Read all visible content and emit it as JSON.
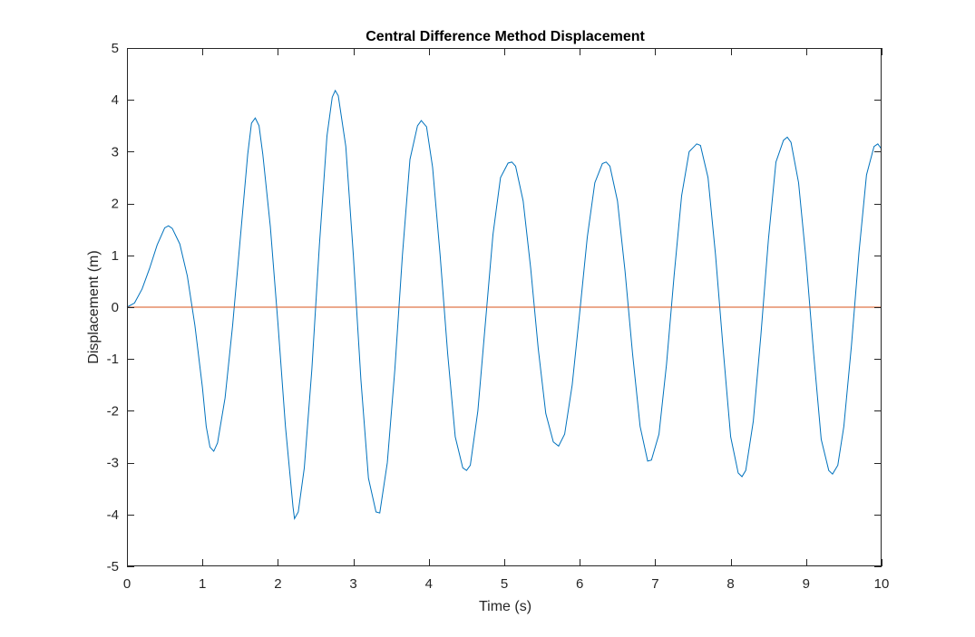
{
  "chart_data": {
    "type": "line",
    "title": "Central Difference Method Displacement",
    "xlabel": "Time (s)",
    "ylabel": "Displacement (m)",
    "xlim": [
      0,
      10
    ],
    "ylim": [
      -5,
      5
    ],
    "xticks": [
      0,
      1,
      2,
      3,
      4,
      5,
      6,
      7,
      8,
      9,
      10
    ],
    "yticks": [
      5,
      4,
      3,
      2,
      1,
      0,
      -1,
      -2,
      -3,
      -4,
      -5
    ],
    "grid": false,
    "legend": "none",
    "series": [
      {
        "color": "#0072BD",
        "points": [
          [
            0.0,
            0.0
          ],
          [
            0.1,
            0.08
          ],
          [
            0.2,
            0.35
          ],
          [
            0.3,
            0.75
          ],
          [
            0.4,
            1.2
          ],
          [
            0.5,
            1.53
          ],
          [
            0.55,
            1.57
          ],
          [
            0.6,
            1.52
          ],
          [
            0.7,
            1.22
          ],
          [
            0.8,
            0.6
          ],
          [
            0.9,
            -0.35
          ],
          [
            1.0,
            -1.55
          ],
          [
            1.05,
            -2.3
          ],
          [
            1.1,
            -2.7
          ],
          [
            1.15,
            -2.78
          ],
          [
            1.2,
            -2.62
          ],
          [
            1.3,
            -1.75
          ],
          [
            1.4,
            -0.35
          ],
          [
            1.5,
            1.3
          ],
          [
            1.6,
            2.95
          ],
          [
            1.65,
            3.55
          ],
          [
            1.7,
            3.65
          ],
          [
            1.75,
            3.5
          ],
          [
            1.8,
            2.95
          ],
          [
            1.9,
            1.55
          ],
          [
            2.0,
            -0.3
          ],
          [
            2.1,
            -2.3
          ],
          [
            2.2,
            -3.85
          ],
          [
            2.22,
            -4.08
          ],
          [
            2.27,
            -3.95
          ],
          [
            2.35,
            -3.1
          ],
          [
            2.45,
            -1.2
          ],
          [
            2.55,
            1.2
          ],
          [
            2.65,
            3.3
          ],
          [
            2.72,
            4.05
          ],
          [
            2.76,
            4.18
          ],
          [
            2.8,
            4.08
          ],
          [
            2.9,
            3.1
          ],
          [
            3.0,
            1.0
          ],
          [
            3.1,
            -1.4
          ],
          [
            3.2,
            -3.3
          ],
          [
            3.3,
            -3.95
          ],
          [
            3.35,
            -3.97
          ],
          [
            3.45,
            -3.0
          ],
          [
            3.55,
            -1.2
          ],
          [
            3.65,
            1.0
          ],
          [
            3.75,
            2.85
          ],
          [
            3.85,
            3.5
          ],
          [
            3.9,
            3.6
          ],
          [
            3.97,
            3.48
          ],
          [
            4.05,
            2.7
          ],
          [
            4.15,
            1.0
          ],
          [
            4.25,
            -0.9
          ],
          [
            4.35,
            -2.5
          ],
          [
            4.45,
            -3.1
          ],
          [
            4.5,
            -3.15
          ],
          [
            4.55,
            -3.05
          ],
          [
            4.65,
            -2.0
          ],
          [
            4.75,
            -0.3
          ],
          [
            4.85,
            1.4
          ],
          [
            4.95,
            2.5
          ],
          [
            5.05,
            2.78
          ],
          [
            5.1,
            2.8
          ],
          [
            5.15,
            2.72
          ],
          [
            5.25,
            2.05
          ],
          [
            5.35,
            0.75
          ],
          [
            5.45,
            -0.8
          ],
          [
            5.55,
            -2.05
          ],
          [
            5.65,
            -2.6
          ],
          [
            5.72,
            -2.68
          ],
          [
            5.8,
            -2.45
          ],
          [
            5.9,
            -1.5
          ],
          [
            6.0,
            -0.1
          ],
          [
            6.1,
            1.35
          ],
          [
            6.2,
            2.4
          ],
          [
            6.3,
            2.77
          ],
          [
            6.35,
            2.8
          ],
          [
            6.4,
            2.72
          ],
          [
            6.5,
            2.05
          ],
          [
            6.6,
            0.7
          ],
          [
            6.7,
            -0.9
          ],
          [
            6.8,
            -2.3
          ],
          [
            6.9,
            -2.97
          ],
          [
            6.95,
            -2.95
          ],
          [
            7.05,
            -2.45
          ],
          [
            7.15,
            -1.1
          ],
          [
            7.25,
            0.6
          ],
          [
            7.35,
            2.15
          ],
          [
            7.45,
            3.0
          ],
          [
            7.55,
            3.15
          ],
          [
            7.6,
            3.12
          ],
          [
            7.7,
            2.5
          ],
          [
            7.8,
            1.0
          ],
          [
            7.9,
            -0.8
          ],
          [
            8.0,
            -2.5
          ],
          [
            8.1,
            -3.2
          ],
          [
            8.15,
            -3.27
          ],
          [
            8.2,
            -3.15
          ],
          [
            8.3,
            -2.2
          ],
          [
            8.4,
            -0.55
          ],
          [
            8.5,
            1.3
          ],
          [
            8.6,
            2.8
          ],
          [
            8.7,
            3.22
          ],
          [
            8.75,
            3.28
          ],
          [
            8.8,
            3.18
          ],
          [
            8.9,
            2.4
          ],
          [
            9.0,
            0.9
          ],
          [
            9.1,
            -0.9
          ],
          [
            9.2,
            -2.55
          ],
          [
            9.3,
            -3.15
          ],
          [
            9.35,
            -3.22
          ],
          [
            9.42,
            -3.05
          ],
          [
            9.5,
            -2.3
          ],
          [
            9.6,
            -0.75
          ],
          [
            9.7,
            1.05
          ],
          [
            9.8,
            2.55
          ],
          [
            9.9,
            3.1
          ],
          [
            9.95,
            3.15
          ],
          [
            10.0,
            3.05
          ]
        ]
      },
      {
        "color": "#D95319",
        "points": [
          [
            0,
            0
          ],
          [
            10,
            0
          ]
        ]
      }
    ]
  }
}
